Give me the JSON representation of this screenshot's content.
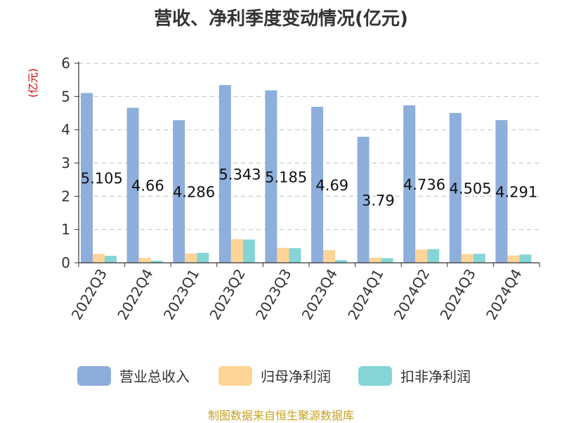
{
  "chart_data": {
    "type": "bar",
    "title": "营收、净利季度变动情况(亿元)",
    "unit_label": "(亿元)",
    "categories": [
      "2022Q3",
      "2022Q4",
      "2023Q1",
      "2023Q2",
      "2023Q3",
      "2023Q4",
      "2024Q1",
      "2024Q2",
      "2024Q3",
      "2024Q4"
    ],
    "ylim": [
      0,
      6
    ],
    "yticks": [
      "0",
      "1",
      "2",
      "3",
      "4",
      "5",
      "6"
    ],
    "grid": true,
    "legend_position": "bottom",
    "series": [
      {
        "name": "营业总收入",
        "color": "#8eaedb",
        "values": [
          5.105,
          4.66,
          4.286,
          5.343,
          5.185,
          4.69,
          3.79,
          4.736,
          4.505,
          4.291
        ],
        "labels": [
          "5.105",
          "4.66",
          "4.286",
          "5.343",
          "5.185",
          "4.69",
          "3.79",
          "4.736",
          "4.505",
          "4.291"
        ]
      },
      {
        "name": "归母净利润",
        "color": "#fed597",
        "values": [
          0.27,
          0.15,
          0.28,
          0.71,
          0.45,
          0.38,
          0.16,
          0.4,
          0.26,
          0.22
        ]
      },
      {
        "name": "扣非净利润",
        "color": "#85d5d6",
        "values": [
          0.21,
          0.06,
          0.3,
          0.7,
          0.44,
          0.08,
          0.14,
          0.41,
          0.27,
          0.25
        ]
      }
    ]
  },
  "source_note": "制图数据来自恒生聚源数据库"
}
